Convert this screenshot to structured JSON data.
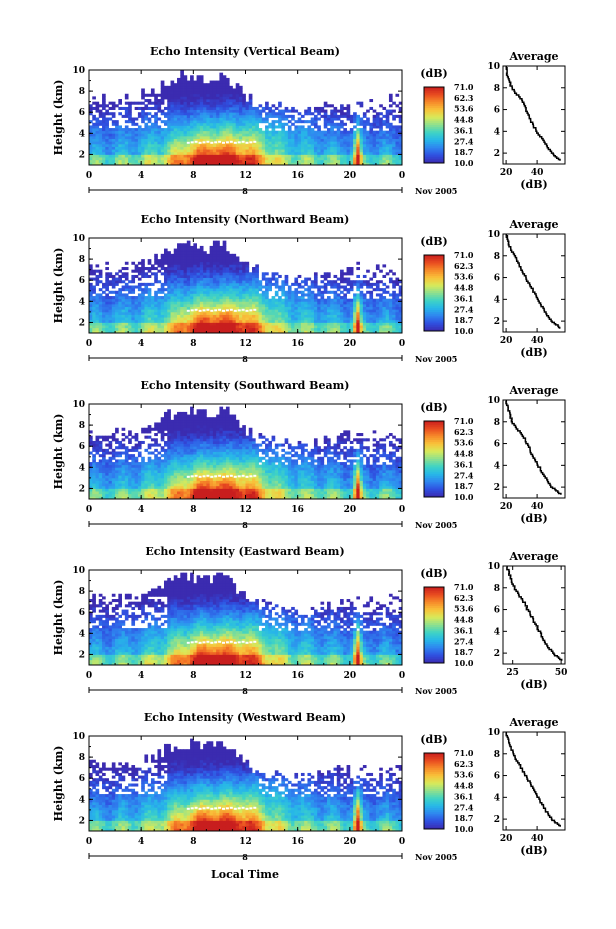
{
  "figure": {
    "xlabel": "Local Time",
    "date_label": "Nov 2005",
    "day_label": "8",
    "colorbar_unit": "(dB)",
    "colorbar_ticks": [
      "71.0",
      "62.3",
      "53.6",
      "44.8",
      "36.1",
      "27.4",
      "18.7",
      "10.0"
    ],
    "colorscale": [
      "#3b2bb0",
      "#2f4fe0",
      "#2f86f0",
      "#27b7e8",
      "#3fd3c4",
      "#8ee08e",
      "#d8ea5a",
      "#f8c23a",
      "#f78a2a",
      "#e84a20",
      "#c81e1e"
    ]
  },
  "chart_data": [
    {
      "type": "heatmap",
      "title": "Echo Intensity (Vertical Beam)",
      "ylabel": "Height (km)",
      "x_ticks": [
        "0",
        "4",
        "8",
        "12",
        "16",
        "20",
        "0"
      ],
      "y_ticks": [
        "2",
        "4",
        "6",
        "8",
        "10"
      ],
      "xlim": [
        0,
        24
      ],
      "ylim": [
        1,
        10
      ],
      "zlim": [
        10.0,
        71.0
      ],
      "profile": {
        "title": "Average",
        "xlabel": "(dB)",
        "x_ticks": [
          "20",
          "40"
        ],
        "xlim": [
          18,
          58
        ],
        "heights": [
          10,
          9,
          8,
          7,
          6,
          5,
          4,
          3,
          2,
          1.3
        ],
        "values": [
          20,
          21,
          24,
          30,
          33,
          36,
          40,
          45,
          50,
          56
        ]
      }
    },
    {
      "type": "heatmap",
      "title": "Echo Intensity (Northward Beam)",
      "ylabel": "Height (km)",
      "x_ticks": [
        "0",
        "4",
        "8",
        "12",
        "16",
        "20",
        "0"
      ],
      "y_ticks": [
        "2",
        "4",
        "6",
        "8",
        "10"
      ],
      "xlim": [
        0,
        24
      ],
      "ylim": [
        1,
        10
      ],
      "zlim": [
        10.0,
        71.0
      ],
      "profile": {
        "title": "Average",
        "xlabel": "(dB)",
        "x_ticks": [
          "20",
          "40"
        ],
        "xlim": [
          18,
          58
        ],
        "heights": [
          10,
          9,
          8,
          7,
          6,
          5,
          4,
          3,
          2,
          1.3
        ],
        "values": [
          20,
          22,
          26,
          29,
          33,
          37,
          41,
          45,
          50,
          56
        ]
      }
    },
    {
      "type": "heatmap",
      "title": "Echo Intensity (Southward Beam)",
      "ylabel": "Height (km)",
      "x_ticks": [
        "0",
        "4",
        "8",
        "12",
        "16",
        "20",
        "0"
      ],
      "y_ticks": [
        "2",
        "4",
        "6",
        "8",
        "10"
      ],
      "xlim": [
        0,
        24
      ],
      "ylim": [
        1,
        10
      ],
      "zlim": [
        10.0,
        71.0
      ],
      "profile": {
        "title": "Average",
        "xlabel": "(dB)",
        "x_ticks": [
          "20",
          "40"
        ],
        "xlim": [
          18,
          58
        ],
        "heights": [
          10,
          9,
          8,
          7,
          6,
          5,
          4,
          3,
          2,
          1.3
        ],
        "values": [
          20,
          22,
          24,
          30,
          34,
          37,
          41,
          45,
          50,
          56
        ]
      }
    },
    {
      "type": "heatmap",
      "title": "Echo Intensity (Eastward Beam)",
      "ylabel": "Height (km)",
      "x_ticks": [
        "0",
        "4",
        "8",
        "12",
        "16",
        "20",
        "0"
      ],
      "y_ticks": [
        "2",
        "4",
        "6",
        "8",
        "10"
      ],
      "xlim": [
        0,
        24
      ],
      "ylim": [
        1,
        10
      ],
      "zlim": [
        10.0,
        71.0
      ],
      "profile": {
        "title": "Average",
        "xlabel": "(dB)",
        "x_ticks": [
          "25",
          "50"
        ],
        "xlim": [
          20,
          52
        ],
        "heights": [
          10,
          9,
          8,
          7,
          6,
          5,
          4,
          3,
          2,
          1.3
        ],
        "values": [
          22,
          24,
          26,
          30,
          33,
          36,
          39,
          42,
          46,
          51
        ]
      }
    },
    {
      "type": "heatmap",
      "title": "Echo Intensity (Westward Beam)",
      "ylabel": "Height (km)",
      "x_ticks": [
        "0",
        "4",
        "8",
        "12",
        "16",
        "20",
        "0"
      ],
      "y_ticks": [
        "2",
        "4",
        "6",
        "8",
        "10"
      ],
      "xlim": [
        0,
        24
      ],
      "ylim": [
        1,
        10
      ],
      "zlim": [
        10.0,
        71.0
      ],
      "profile": {
        "title": "Average",
        "xlabel": "(dB)",
        "x_ticks": [
          "20",
          "40"
        ],
        "xlim": [
          18,
          58
        ],
        "heights": [
          10,
          9,
          8,
          7,
          6,
          5,
          4,
          3,
          2,
          1.3
        ],
        "values": [
          20,
          22,
          25,
          29,
          33,
          37,
          41,
          45,
          50,
          56
        ]
      }
    }
  ]
}
